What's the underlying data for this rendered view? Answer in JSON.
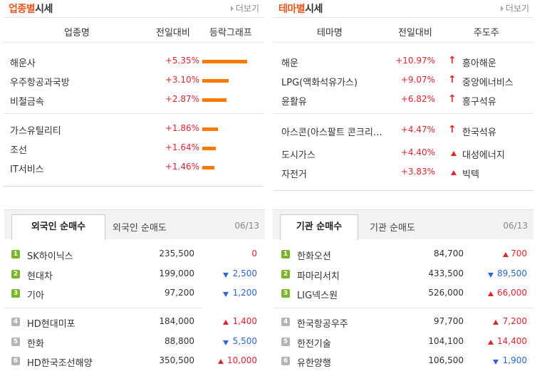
{
  "sector": {
    "title_accent": "업종별",
    "title_rest": "시세",
    "more": "더보기",
    "headers": [
      "업종명",
      "전일대비",
      "등락그래프"
    ],
    "rows": [
      {
        "name": "해운사",
        "change": "+5.35%",
        "pct": 5.35
      },
      {
        "name": "우주항공과국방",
        "change": "+3.10%",
        "pct": 3.1
      },
      {
        "name": "비철금속",
        "change": "+2.87%",
        "pct": 2.87
      },
      {
        "name": "가스유틸리티",
        "change": "+1.86%",
        "pct": 1.86
      },
      {
        "name": "조선",
        "change": "+1.64%",
        "pct": 1.64
      },
      {
        "name": "IT서비스",
        "change": "+1.46%",
        "pct": 1.46
      }
    ]
  },
  "theme": {
    "title_accent": "테마별",
    "title_rest": "시세",
    "more": "더보기",
    "headers": [
      "테마명",
      "전일대비",
      "주도주"
    ],
    "rows": [
      {
        "name": "해운",
        "change": "+10.97%",
        "leader": "흥아해운",
        "icon": "arrow"
      },
      {
        "name": "LPG(액화석유가스)",
        "change": "+9.07%",
        "leader": "중앙에너비스",
        "icon": "arrow"
      },
      {
        "name": "윤활유",
        "change": "+6.82%",
        "leader": "흥구석유",
        "icon": "arrow"
      },
      {
        "name": "아스콘(아스팔트 콘크리트…",
        "change": "+4.47%",
        "leader": "한국석유",
        "icon": "arrow"
      },
      {
        "name": "도시가스",
        "change": "+4.40%",
        "leader": "대성에너지",
        "icon": "triangle"
      },
      {
        "name": "자전거",
        "change": "+3.83%",
        "leader": "빅텍",
        "icon": "triangle"
      }
    ]
  },
  "foreign": {
    "tab_active": "외국인 순매수",
    "tab_inactive": "외국인 순매도",
    "date": "06/13",
    "rows": [
      {
        "rank": "1",
        "name": "SK하이닉스",
        "price": "235,500",
        "change": "0",
        "dir": "none"
      },
      {
        "rank": "2",
        "name": "현대차",
        "price": "199,000",
        "change": "2,500",
        "dir": "down"
      },
      {
        "rank": "3",
        "name": "기아",
        "price": "97,200",
        "change": "1,200",
        "dir": "down"
      },
      {
        "rank": "4",
        "name": "HD현대미포",
        "price": "184,000",
        "change": "1,400",
        "dir": "up"
      },
      {
        "rank": "5",
        "name": "한화",
        "price": "88,800",
        "change": "5,500",
        "dir": "down"
      },
      {
        "rank": "6",
        "name": "HD한국조선해양",
        "price": "350,500",
        "change": "10,000",
        "dir": "up"
      }
    ]
  },
  "institution": {
    "tab_active": "기관 순매수",
    "tab_inactive": "기관 순매도",
    "date": "06/13",
    "rows": [
      {
        "rank": "1",
        "name": "한화오션",
        "price": "84,700",
        "change": "700",
        "dir": "up"
      },
      {
        "rank": "2",
        "name": "파마리서치",
        "price": "433,500",
        "change": "89,500",
        "dir": "down"
      },
      {
        "rank": "3",
        "name": "LIG넥스원",
        "price": "526,000",
        "change": "66,000",
        "dir": "up"
      },
      {
        "rank": "4",
        "name": "한국항공우주",
        "price": "97,700",
        "change": "7,200",
        "dir": "up"
      },
      {
        "rank": "5",
        "name": "한전기술",
        "price": "104,100",
        "change": "14,400",
        "dir": "up"
      },
      {
        "rank": "6",
        "name": "유한양행",
        "price": "106,500",
        "change": "1,900",
        "dir": "down"
      }
    ]
  },
  "colors": {
    "accent": "#e8551d",
    "up": "#e0232f",
    "down": "#2b65d9",
    "bar": "#ff7a00"
  }
}
